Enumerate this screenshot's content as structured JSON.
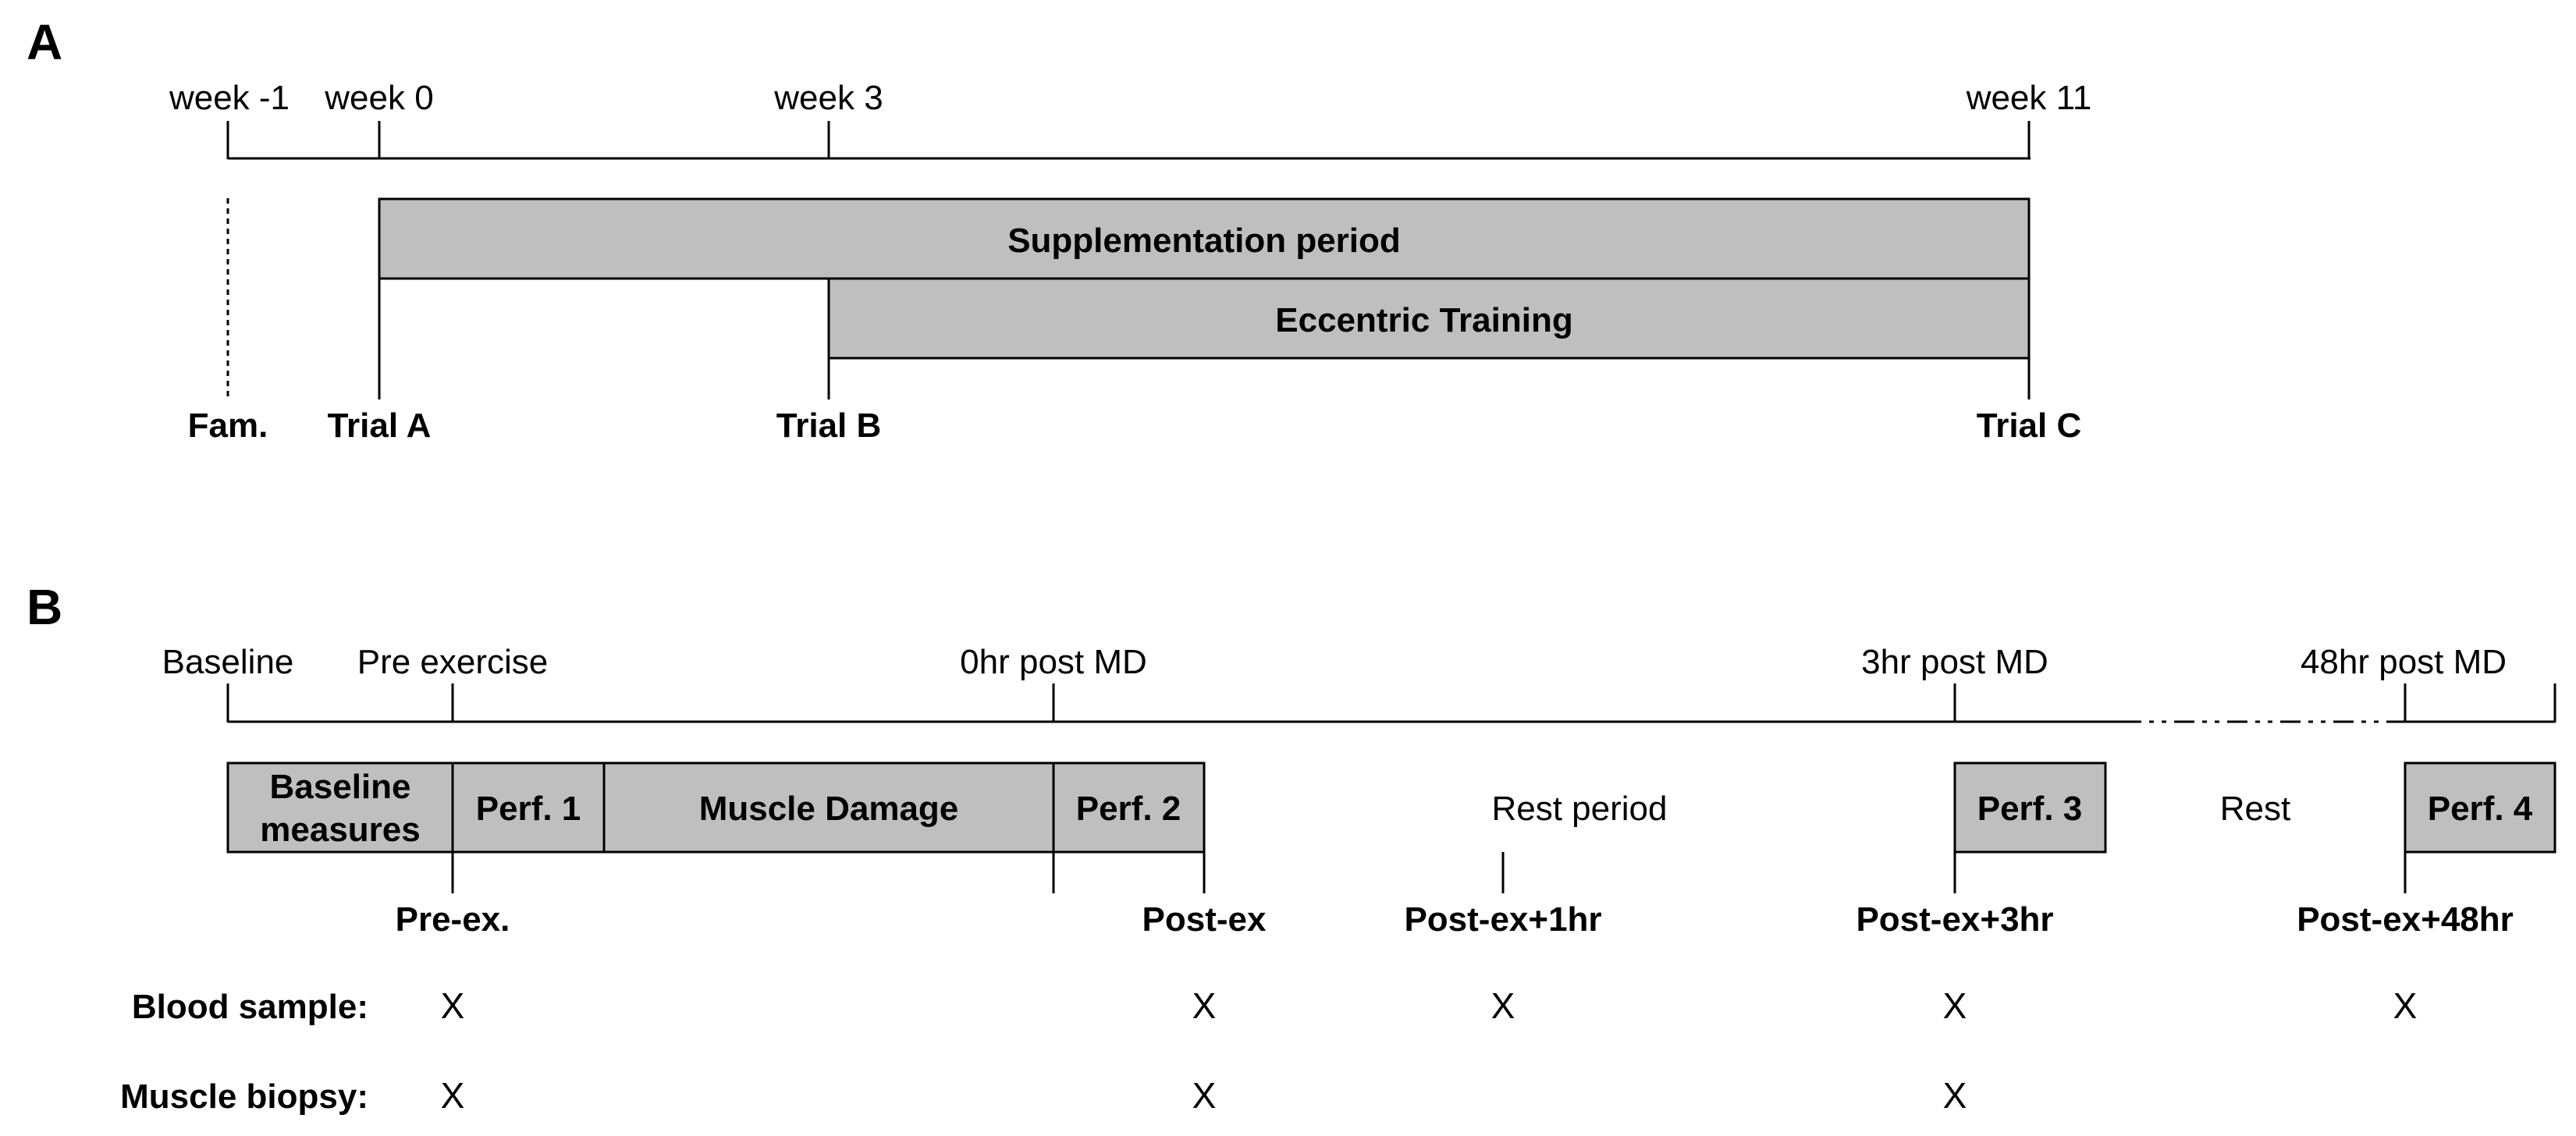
{
  "panel_a": {
    "letter": "A",
    "timeline_labels": [
      "week -1",
      "week 0",
      "week 3",
      "week 11"
    ],
    "supplementation": "Supplementation period",
    "eccentric": "Eccentric Training",
    "trial_labels": [
      "Fam.",
      "Trial A",
      "Trial B",
      "Trial C"
    ]
  },
  "panel_b": {
    "letter": "B",
    "timeline_labels": [
      "Baseline",
      "Pre exercise",
      "0hr post MD",
      "3hr post MD",
      "48hr post MD"
    ],
    "boxes": {
      "baseline_line1": "Baseline",
      "baseline_line2": "measures",
      "perf1": "Perf. 1",
      "muscle_damage": "Muscle Damage",
      "perf2": "Perf. 2",
      "perf3": "Perf. 3",
      "perf4": "Perf. 4"
    },
    "rest_period": "Rest period",
    "rest": "Rest",
    "time_points": [
      "Pre-ex.",
      "Post-ex",
      "Post-ex+1hr",
      "Post-ex+3hr",
      "Post-ex+48hr"
    ],
    "rows": [
      {
        "label": "Blood sample:",
        "marks": [
          "X",
          "X",
          "X",
          "X",
          "X"
        ]
      },
      {
        "label": "Muscle biopsy:",
        "marks": [
          "X",
          "X",
          "",
          "X",
          ""
        ]
      }
    ]
  }
}
